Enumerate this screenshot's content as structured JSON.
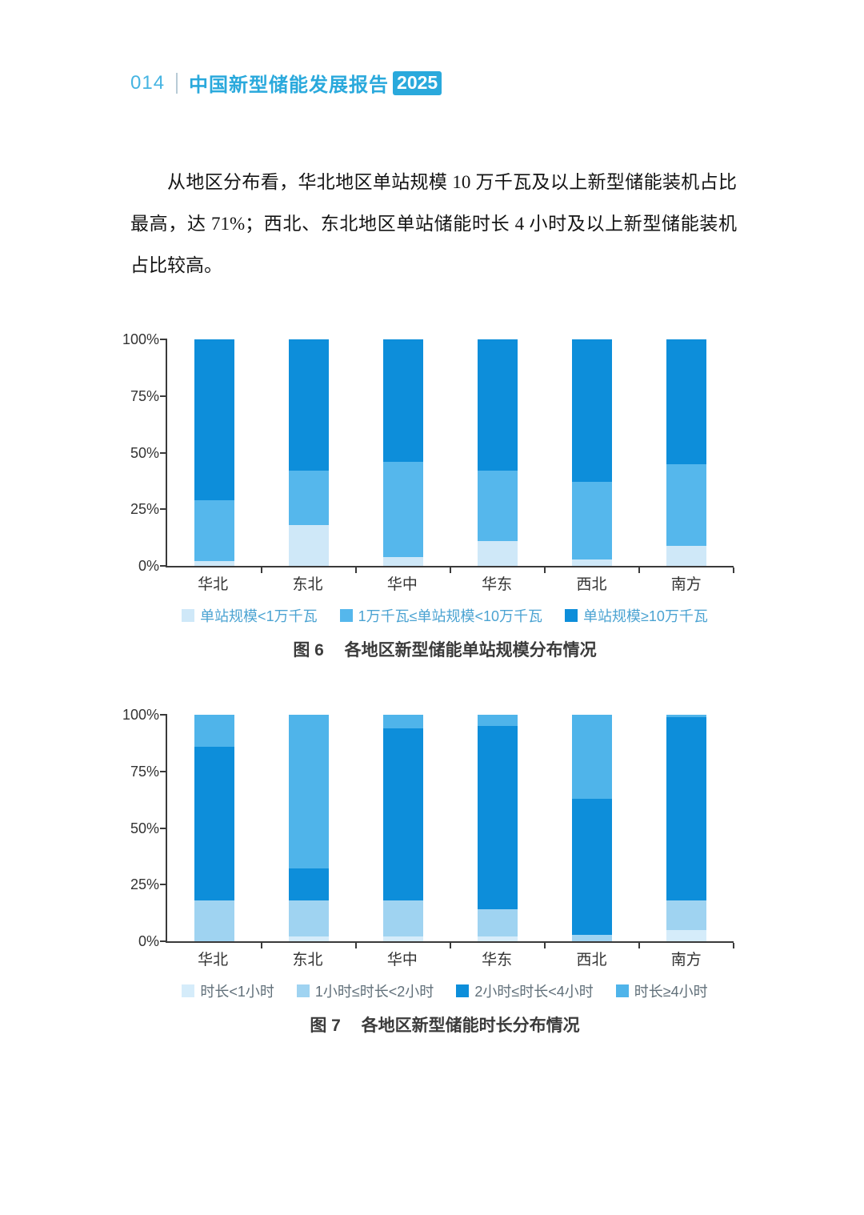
{
  "page": {
    "number": "014",
    "header_title": "中国新型储能发展报告",
    "header_year": "2025",
    "accent_color": "#2AA9DC"
  },
  "paragraph": {
    "text": "从地区分布看，华北地区单站规模 10 万千瓦及以上新型储能装机占比最高，达 71%；西北、东北地区单站储能时长 4 小时及以上新型储能装机占比较高。"
  },
  "chart_data": [
    {
      "type": "bar",
      "stacked": true,
      "categories": [
        "华北",
        "东北",
        "华中",
        "华东",
        "西北",
        "南方"
      ],
      "series": [
        {
          "name": "单站规模<1万千瓦",
          "color": "#CFE8F8",
          "values": [
            2,
            18,
            4,
            11,
            3,
            9
          ]
        },
        {
          "name": "1万千瓦≤单站规模<10万千瓦",
          "color": "#55B7EC",
          "values": [
            27,
            24,
            42,
            31,
            34,
            36
          ]
        },
        {
          "name": "单站规模≥10万千瓦",
          "color": "#0D8EDA",
          "values": [
            71,
            58,
            54,
            58,
            63,
            55
          ]
        }
      ],
      "y_ticks": [
        "0%",
        "25%",
        "50%",
        "75%",
        "100%"
      ],
      "ylim": [
        0,
        100
      ],
      "grid": false,
      "legend_position": "bottom",
      "legend_text_color": "#4BA3D2",
      "caption": {
        "label": "图 6",
        "text": "各地区新型储能单站规模分布情况"
      }
    },
    {
      "type": "bar",
      "stacked": true,
      "categories": [
        "华北",
        "东北",
        "华中",
        "华东",
        "西北",
        "南方"
      ],
      "series": [
        {
          "name": "时长<1小时",
          "color": "#D5ECFA",
          "values": [
            0,
            2,
            2,
            2,
            0,
            5
          ]
        },
        {
          "name": "1小时≤时长<2小时",
          "color": "#9FD3F1",
          "values": [
            18,
            16,
            16,
            12,
            3,
            13
          ]
        },
        {
          "name": "2小时≤时长<4小时",
          "color": "#0D8EDA",
          "values": [
            68,
            14,
            76,
            81,
            60,
            81
          ]
        },
        {
          "name": "时长≥4小时",
          "color": "#4FB4EA",
          "values": [
            14,
            68,
            6,
            5,
            37,
            1
          ]
        }
      ],
      "y_ticks": [
        "0%",
        "25%",
        "50%",
        "75%",
        "100%"
      ],
      "ylim": [
        0,
        100
      ],
      "grid": false,
      "legend_position": "bottom",
      "legend_text_color": "#61707A",
      "caption": {
        "label": "图 7",
        "text": "各地区新型储能时长分布情况"
      }
    }
  ]
}
